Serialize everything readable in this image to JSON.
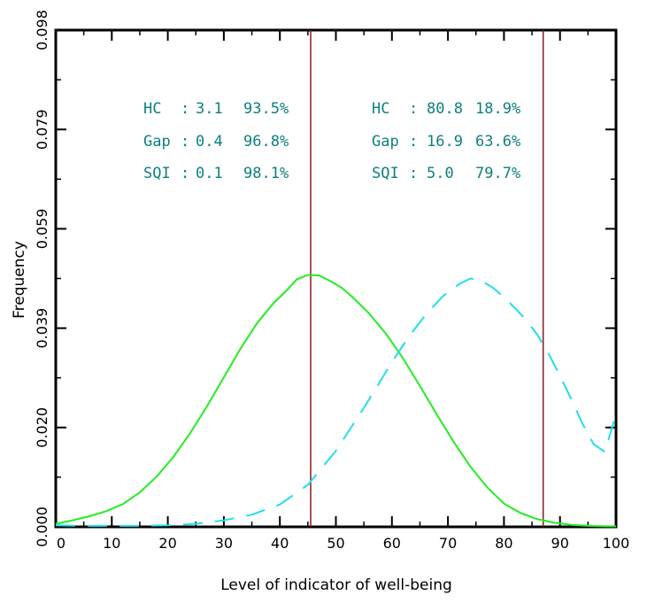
{
  "chart_data": {
    "type": "line",
    "title": "",
    "xlabel": "Level of indicator of well-being",
    "ylabel": "Frequency",
    "xlim": [
      0,
      100
    ],
    "ylim": [
      0.0,
      0.098
    ],
    "x_ticks": [
      "0",
      "10",
      "20",
      "30",
      "40",
      "50",
      "60",
      "70",
      "80",
      "90",
      "100"
    ],
    "y_ticks": [
      "0.000",
      "0.020",
      "0.039",
      "0.059",
      "0.079",
      "0.098"
    ],
    "grid": false,
    "colors": {
      "series_green": "#22ee22",
      "series_cyan": "#22ddee",
      "vlines": "#8b1a1a",
      "annotation": "#0f7f7f"
    },
    "vertical_lines": [
      45.5,
      87
    ],
    "series": [
      {
        "x": [
          0,
          3,
          6,
          9,
          12,
          15,
          18,
          21,
          24,
          27,
          30,
          33,
          36,
          39,
          41,
          43,
          45,
          47,
          49,
          51,
          53,
          56,
          59,
          62,
          65,
          68,
          71,
          74,
          77,
          80,
          83,
          86,
          89,
          92,
          95,
          98,
          100
        ],
        "values": [
          0.0006,
          0.0013,
          0.0021,
          0.0031,
          0.0045,
          0.0068,
          0.0099,
          0.0138,
          0.0185,
          0.0238,
          0.0295,
          0.0352,
          0.0403,
          0.0443,
          0.0464,
          0.0488,
          0.0497,
          0.0496,
          0.0485,
          0.0472,
          0.0453,
          0.042,
          0.038,
          0.0332,
          0.0278,
          0.0222,
          0.0168,
          0.0119,
          0.0078,
          0.0046,
          0.0027,
          0.0015,
          0.0008,
          0.0004,
          0.0002,
          0.0001,
          0.0001
        ]
      },
      {
        "x": [
          0,
          5,
          10,
          15,
          20,
          25,
          30,
          35,
          40,
          45,
          50,
          55,
          60,
          63,
          66,
          69,
          72,
          74,
          76,
          78,
          80,
          82,
          84,
          86,
          88,
          90,
          92,
          94,
          96,
          98,
          100
        ],
        "values": [
          0.0003,
          0.0002,
          0.0002,
          0.0002,
          0.0003,
          0.0006,
          0.0013,
          0.0024,
          0.0044,
          0.0083,
          0.015,
          0.0235,
          0.0325,
          0.0375,
          0.0418,
          0.0454,
          0.0479,
          0.049,
          0.0485,
          0.0472,
          0.0453,
          0.0431,
          0.0408,
          0.0378,
          0.0341,
          0.0298,
          0.0252,
          0.0204,
          0.0163,
          0.0148,
          0.0222
        ]
      }
    ],
    "annotations": {
      "left": [
        {
          "label": "HC",
          "sep": ":",
          "value": "3.1",
          "pct": "93.5%"
        },
        {
          "label": "Gap",
          "sep": ":",
          "value": "0.4",
          "pct": "96.8%"
        },
        {
          "label": "SQI",
          "sep": ":",
          "value": "0.1",
          "pct": "98.1%"
        }
      ],
      "right": [
        {
          "label": "HC",
          "sep": ":",
          "value": "80.8",
          "pct": "18.9%"
        },
        {
          "label": "Gap",
          "sep": ":",
          "value": "16.9",
          "pct": "63.6%"
        },
        {
          "label": "SQI",
          "sep": ":",
          "value": "5.0",
          "pct": "79.7%"
        }
      ]
    }
  }
}
